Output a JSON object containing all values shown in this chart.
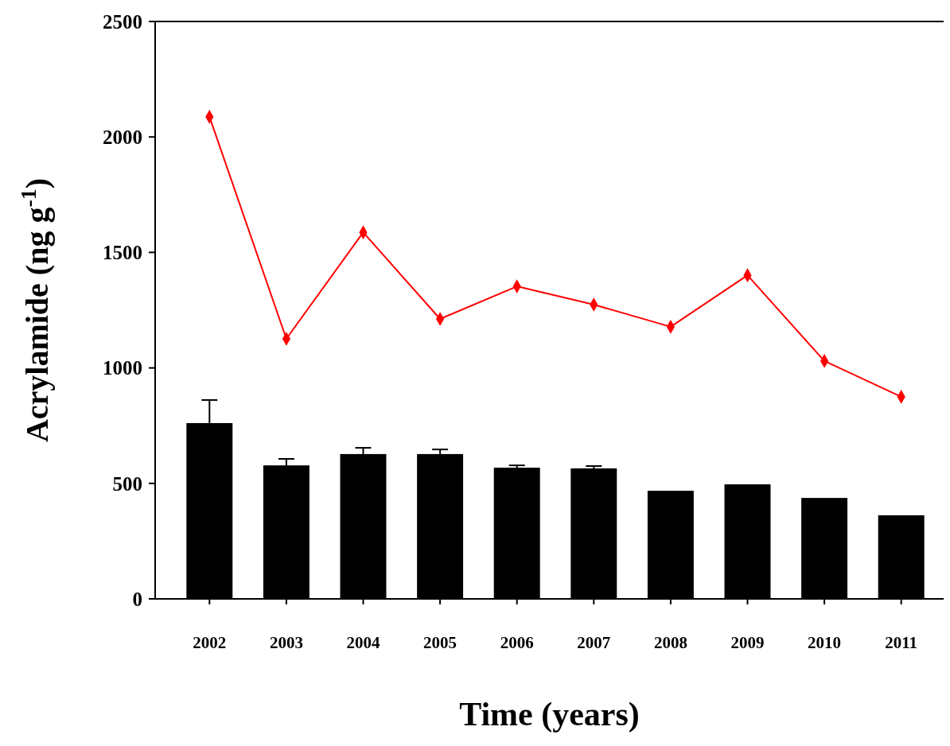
{
  "chart_data": {
    "type": "bar",
    "xlabel": "Time (years)",
    "ylabel": "Acrylamide (ng g$^{-1}$)",
    "categories": [
      "2002",
      "2003",
      "2004",
      "2005",
      "2006",
      "2007",
      "2008",
      "2009",
      "2010",
      "2011"
    ],
    "series": [
      {
        "color": "#000000",
        "values": [
          761,
          578,
          627,
          627,
          568,
          565,
          468,
          496,
          437,
          362
        ],
        "errors": [
          100,
          28,
          27,
          20,
          10,
          10,
          null,
          null,
          null,
          null
        ]
      },
      {
        "type": "line",
        "color": "#ff0000",
        "values": [
          2087,
          1126,
          1587,
          1212,
          1353,
          1274,
          1178,
          1401,
          1030,
          875
        ],
        "marker": "diamond"
      }
    ],
    "ylim": [
      0,
      2500
    ],
    "yticks": [
      0,
      500,
      1000,
      1500,
      2000,
      2500
    ],
    "grid": false
  }
}
